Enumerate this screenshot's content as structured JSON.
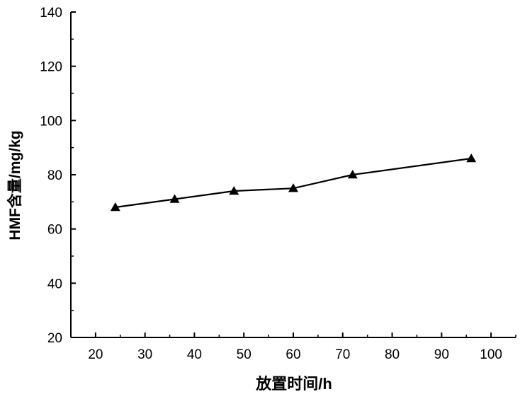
{
  "chart_data": {
    "type": "line",
    "title": "",
    "xlabel": "放置时间/h",
    "ylabel": "HMF含量/mg/kg",
    "xlim": [
      15,
      105
    ],
    "ylim": [
      20,
      140
    ],
    "x_ticks": [
      20,
      30,
      40,
      50,
      60,
      70,
      80,
      90,
      100
    ],
    "y_ticks": [
      20,
      40,
      60,
      80,
      100,
      120,
      140
    ],
    "grid": false,
    "legend": "none",
    "marker": "triangle",
    "line_color": "#000000",
    "series": [
      {
        "x": [
          24,
          36,
          48,
          60,
          72,
          96
        ],
        "values": [
          68,
          71,
          74,
          75,
          80,
          86
        ]
      }
    ]
  }
}
